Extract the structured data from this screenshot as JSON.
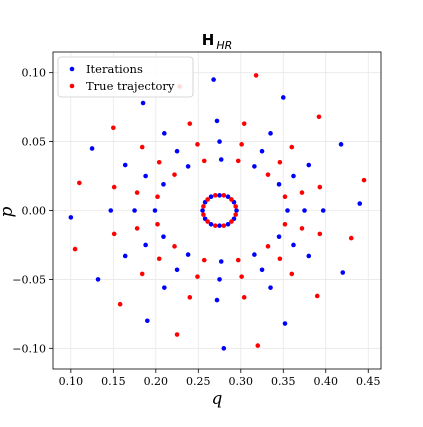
{
  "chart_data": {
    "type": "scatter",
    "title": "H",
    "title_subscript": "HR",
    "x_label": "q",
    "y_label": "p",
    "xlim": [
      0.079,
      0.465
    ],
    "ylim": [
      -0.115,
      0.115
    ],
    "xticks": [
      {
        "value": 0.1,
        "label": "0.10"
      },
      {
        "value": 0.15,
        "label": "0.15"
      },
      {
        "value": 0.2,
        "label": "0.20"
      },
      {
        "value": 0.25,
        "label": "0.25"
      },
      {
        "value": 0.3,
        "label": "0.30"
      },
      {
        "value": 0.35,
        "label": "0.35"
      },
      {
        "value": 0.4,
        "label": "0.40"
      },
      {
        "value": 0.45,
        "label": "0.45"
      }
    ],
    "yticks": [
      {
        "value": -0.1,
        "label": "−0.10"
      },
      {
        "value": -0.05,
        "label": "−0.05"
      },
      {
        "value": 0,
        "label": "0.00"
      },
      {
        "value": 0.05,
        "label": "0.05"
      },
      {
        "value": 0.1,
        "label": "0.10"
      }
    ],
    "grid": true,
    "legend": "upper left",
    "series": [
      {
        "name": "Iterations",
        "color": "#0000ff",
        "x": [
          0.295,
          0.292,
          0.285,
          0.275,
          0.265,
          0.258,
          0.255,
          0.258,
          0.265,
          0.275,
          0.285,
          0.292,
          0.355,
          0.345,
          0.316,
          0.277,
          0.238,
          0.209,
          0.199,
          0.209,
          0.238,
          0.277,
          0.316,
          0.345,
          0.375,
          0.362,
          0.325,
          0.275,
          0.225,
          0.188,
          0.175,
          0.188,
          0.225,
          0.275,
          0.325,
          0.362,
          0.397,
          0.38,
          0.335,
          0.272,
          0.21,
          0.164,
          0.147,
          0.164,
          0.21,
          0.272,
          0.335,
          0.38,
          0.44,
          0.418,
          0.35,
          0.268,
          0.185,
          0.125,
          0.1,
          0.132,
          0.19,
          0.28,
          0.352,
          0.42
        ],
        "values": [
          0,
          0.006,
          0.01,
          0.011,
          0.01,
          0.006,
          0,
          -0.006,
          -0.01,
          -0.011,
          -0.01,
          -0.006,
          0,
          0.019,
          0.032,
          0.037,
          0.032,
          0.019,
          0,
          -0.019,
          -0.032,
          -0.037,
          -0.032,
          -0.019,
          0,
          0.025,
          0.043,
          0.05,
          0.043,
          0.025,
          0,
          -0.025,
          -0.043,
          -0.05,
          -0.043,
          -0.025,
          0,
          0.033,
          0.056,
          0.065,
          0.056,
          0.033,
          0,
          -0.033,
          -0.056,
          -0.065,
          -0.056,
          -0.033,
          0.005,
          0.048,
          0.082,
          0.095,
          0.078,
          0.045,
          -0.005,
          -0.05,
          -0.08,
          -0.1,
          -0.082,
          -0.045
        ]
      },
      {
        "name": "True trajectory",
        "color": "#ff0000",
        "x": [
          0.294,
          0.289,
          0.28,
          0.27,
          0.261,
          0.256,
          0.256,
          0.261,
          0.27,
          0.28,
          0.289,
          0.294,
          0.352,
          0.332,
          0.297,
          0.257,
          0.222,
          0.202,
          0.202,
          0.222,
          0.257,
          0.297,
          0.332,
          0.352,
          0.372,
          0.346,
          0.301,
          0.249,
          0.204,
          0.178,
          0.178,
          0.204,
          0.249,
          0.301,
          0.346,
          0.372,
          0.393,
          0.36,
          0.304,
          0.24,
          0.184,
          0.151,
          0.151,
          0.184,
          0.24,
          0.304,
          0.36,
          0.393,
          0.445,
          0.392,
          0.318,
          0.228,
          0.15,
          0.11,
          0.105,
          0.158,
          0.225,
          0.32,
          0.39,
          0.43
        ],
        "values": [
          0.003,
          0.008,
          0.011,
          0.011,
          0.008,
          0.003,
          -0.003,
          -0.008,
          -0.011,
          -0.011,
          -0.008,
          -0.003,
          0.01,
          0.026,
          0.036,
          0.036,
          0.026,
          0.01,
          -0.01,
          -0.026,
          -0.036,
          -0.036,
          -0.026,
          -0.01,
          0.013,
          0.035,
          0.048,
          0.048,
          0.035,
          0.013,
          -0.013,
          -0.035,
          -0.048,
          -0.048,
          -0.035,
          -0.013,
          0.017,
          0.046,
          0.063,
          0.063,
          0.046,
          0.017,
          -0.017,
          -0.046,
          -0.063,
          -0.063,
          -0.046,
          -0.017,
          0.022,
          0.068,
          0.098,
          0.09,
          0.06,
          0.02,
          -0.028,
          -0.068,
          -0.09,
          -0.098,
          -0.062,
          -0.02
        ]
      }
    ]
  }
}
